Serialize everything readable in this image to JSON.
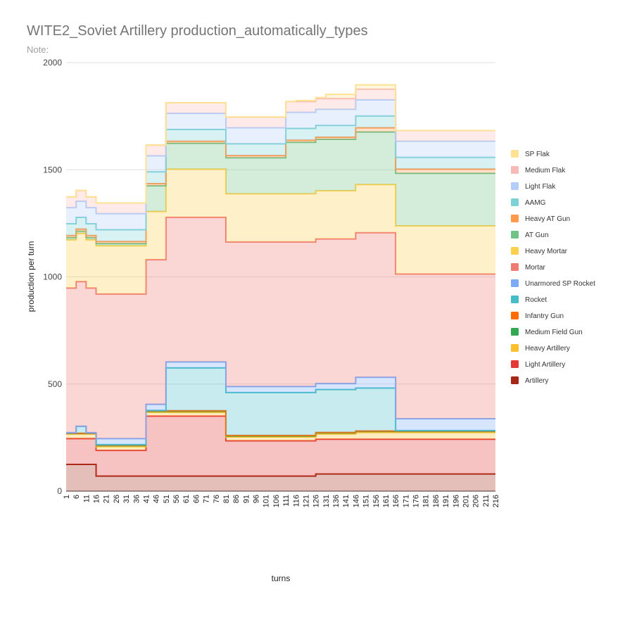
{
  "chart_data": {
    "type": "area",
    "stacked": true,
    "step": true,
    "title": "WITE2_Soviet Artillery production_automatically_types",
    "subtitle": "Note:",
    "xlabel": "turns",
    "ylabel": "production per turn",
    "ylim": [
      0,
      2000
    ],
    "yticks": [
      0,
      500,
      1000,
      1500,
      2000
    ],
    "grid": true,
    "legend_position": "right",
    "x": [
      1,
      6,
      11,
      16,
      21,
      26,
      31,
      36,
      41,
      46,
      51,
      56,
      61,
      66,
      71,
      76,
      81,
      86,
      91,
      96,
      101,
      106,
      111,
      116,
      121,
      126,
      131,
      136,
      141,
      146,
      151,
      156,
      161,
      166,
      171,
      176,
      181,
      186,
      191,
      196,
      201,
      206,
      211,
      216
    ],
    "series": [
      {
        "name": "Artillery",
        "color": "#a52714",
        "values": [
          125,
          125,
          125,
          70,
          70,
          70,
          70,
          70,
          70,
          70,
          70,
          70,
          70,
          70,
          70,
          70,
          70,
          70,
          70,
          70,
          70,
          70,
          70,
          70,
          70,
          80,
          80,
          80,
          80,
          80,
          80,
          80,
          80,
          80,
          80,
          80,
          80,
          80,
          80,
          80,
          80,
          80,
          80,
          80
        ]
      },
      {
        "name": "Light Artillery",
        "color": "#e53935",
        "values": [
          120,
          120,
          120,
          120,
          120,
          120,
          120,
          120,
          280,
          280,
          280,
          280,
          280,
          280,
          280,
          280,
          165,
          165,
          165,
          165,
          165,
          165,
          165,
          165,
          165,
          162,
          162,
          162,
          162,
          162,
          162,
          162,
          162,
          162,
          162,
          162,
          162,
          162,
          162,
          162,
          162,
          162,
          162,
          162
        ]
      },
      {
        "name": "Heavy Artillery",
        "color": "#fbc02d",
        "values": [
          22,
          22,
          22,
          18,
          18,
          18,
          18,
          18,
          18,
          18,
          18,
          18,
          18,
          18,
          18,
          18,
          18,
          18,
          18,
          18,
          18,
          18,
          18,
          18,
          18,
          25,
          25,
          25,
          25,
          32,
          32,
          32,
          32,
          32,
          32,
          32,
          32,
          32,
          32,
          32,
          32,
          32,
          32,
          32
        ]
      },
      {
        "name": "Medium Field Gun",
        "color": "#34a853",
        "values": [
          2,
          2,
          2,
          5,
          5,
          5,
          5,
          5,
          5,
          5,
          5,
          5,
          5,
          5,
          5,
          5,
          5,
          5,
          5,
          5,
          5,
          5,
          5,
          5,
          5,
          5,
          5,
          5,
          5,
          5,
          5,
          5,
          5,
          5,
          5,
          5,
          5,
          5,
          5,
          5,
          5,
          5,
          5,
          5
        ]
      },
      {
        "name": "Infantry Gun",
        "color": "#ff6d00",
        "values": [
          1,
          1,
          1,
          2,
          2,
          2,
          2,
          2,
          2,
          2,
          2,
          2,
          2,
          2,
          2,
          2,
          2,
          2,
          2,
          2,
          2,
          2,
          2,
          2,
          2,
          2,
          2,
          2,
          2,
          2,
          2,
          2,
          2,
          2,
          2,
          2,
          2,
          2,
          2,
          2,
          2,
          2,
          2,
          2
        ]
      },
      {
        "name": "Rocket",
        "color": "#46bdc6",
        "values": [
          2,
          32,
          2,
          2,
          2,
          2,
          2,
          2,
          2,
          2,
          200,
          200,
          200,
          200,
          200,
          200,
          200,
          200,
          200,
          200,
          200,
          200,
          200,
          200,
          200,
          200,
          200,
          200,
          200,
          200,
          200,
          200,
          200,
          2,
          2,
          2,
          2,
          2,
          2,
          2,
          2,
          2,
          2,
          2
        ]
      },
      {
        "name": "Unarmored SP Rocket",
        "color": "#7baaf7",
        "values": [
          1,
          1,
          1,
          28,
          28,
          28,
          28,
          28,
          28,
          28,
          28,
          28,
          28,
          28,
          28,
          28,
          28,
          28,
          28,
          28,
          28,
          28,
          28,
          28,
          28,
          28,
          28,
          28,
          28,
          50,
          50,
          50,
          50,
          55,
          55,
          55,
          55,
          55,
          55,
          55,
          55,
          55,
          55,
          55
        ]
      },
      {
        "name": "Mortar",
        "color": "#f07b72",
        "values": [
          675,
          675,
          675,
          675,
          675,
          675,
          675,
          675,
          675,
          675,
          675,
          675,
          675,
          675,
          675,
          675,
          675,
          675,
          675,
          675,
          675,
          675,
          675,
          675,
          675,
          675,
          675,
          675,
          675,
          675,
          675,
          675,
          675,
          675,
          675,
          675,
          675,
          675,
          675,
          675,
          675,
          675,
          675,
          675
        ]
      },
      {
        "name": "Heavy Mortar",
        "color": "#fcd04f",
        "values": [
          225,
          225,
          225,
          225,
          225,
          225,
          225,
          225,
          225,
          225,
          225,
          225,
          225,
          225,
          225,
          225,
          225,
          225,
          225,
          225,
          225,
          225,
          225,
          225,
          225,
          225,
          225,
          225,
          225,
          225,
          225,
          225,
          225,
          225,
          225,
          225,
          225,
          225,
          225,
          225,
          225,
          225,
          225,
          225
        ]
      },
      {
        "name": "AT Gun",
        "color": "#71c287",
        "values": [
          10,
          10,
          10,
          10,
          10,
          10,
          10,
          10,
          120,
          120,
          120,
          120,
          120,
          120,
          120,
          120,
          168,
          168,
          168,
          168,
          168,
          168,
          240,
          240,
          240,
          240,
          240,
          240,
          240,
          245,
          245,
          245,
          245,
          245,
          245,
          245,
          245,
          245,
          245,
          245,
          245,
          245,
          245,
          245
        ]
      },
      {
        "name": "Heavy AT Gun",
        "color": "#ff994d",
        "values": [
          10,
          10,
          10,
          10,
          10,
          10,
          10,
          10,
          10,
          10,
          10,
          10,
          10,
          10,
          10,
          10,
          10,
          10,
          10,
          10,
          10,
          10,
          10,
          10,
          10,
          10,
          10,
          10,
          10,
          20,
          20,
          20,
          20,
          20,
          20,
          20,
          20,
          20,
          20,
          20,
          20,
          20,
          20,
          20
        ]
      },
      {
        "name": "AAMG",
        "color": "#7ed1d7",
        "values": [
          55,
          55,
          55,
          55,
          55,
          55,
          55,
          55,
          55,
          55,
          55,
          55,
          55,
          55,
          55,
          55,
          55,
          55,
          55,
          55,
          55,
          55,
          55,
          55,
          55,
          55,
          55,
          55,
          55,
          55,
          55,
          55,
          55,
          55,
          55,
          55,
          55,
          55,
          55,
          55,
          55,
          55,
          55,
          55
        ]
      },
      {
        "name": "Light Flak",
        "color": "#b3cefb",
        "values": [
          75,
          75,
          75,
          75,
          75,
          75,
          75,
          75,
          75,
          75,
          75,
          75,
          75,
          75,
          75,
          75,
          75,
          75,
          75,
          75,
          75,
          75,
          75,
          75,
          75,
          75,
          75,
          75,
          75,
          75,
          75,
          75,
          75,
          75,
          75,
          75,
          75,
          75,
          75,
          75,
          75,
          75,
          75,
          75
        ]
      },
      {
        "name": "Medium Flak",
        "color": "#f7bbb7",
        "values": [
          50,
          50,
          50,
          50,
          50,
          50,
          50,
          50,
          50,
          50,
          50,
          50,
          50,
          50,
          50,
          50,
          50,
          50,
          50,
          50,
          50,
          50,
          50,
          50,
          50,
          50,
          50,
          50,
          50,
          50,
          50,
          50,
          50,
          50,
          50,
          50,
          50,
          50,
          50,
          50,
          50,
          50,
          50,
          50
        ]
      },
      {
        "name": "SP Flak",
        "color": "#fde293",
        "values": [
          0,
          0,
          0,
          0,
          0,
          0,
          0,
          0,
          0,
          0,
          0,
          0,
          0,
          0,
          0,
          0,
          0,
          0,
          0,
          0,
          0,
          0,
          0,
          5,
          5,
          5,
          20,
          20,
          20,
          20,
          20,
          20,
          20,
          0,
          0,
          0,
          0,
          0,
          0,
          0,
          0,
          0,
          0,
          0
        ]
      }
    ]
  }
}
